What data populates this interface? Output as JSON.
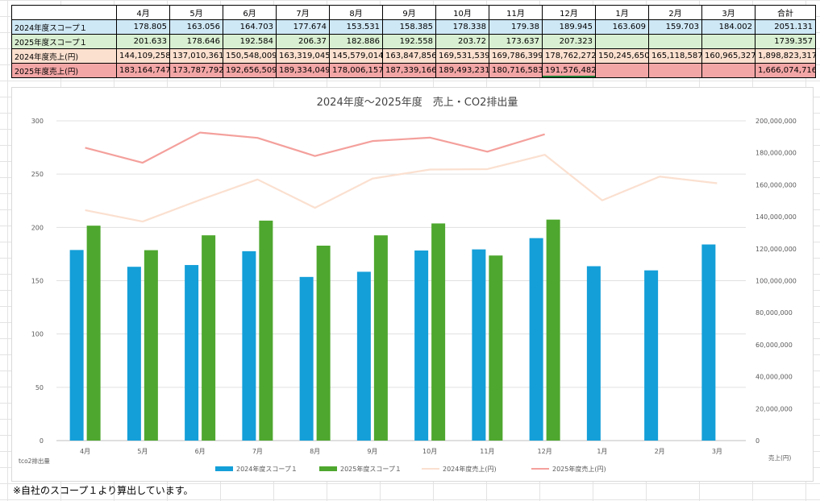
{
  "table": {
    "headers": [
      "",
      "4月",
      "5月",
      "6月",
      "7月",
      "8月",
      "9月",
      "10月",
      "11月",
      "12月",
      "1月",
      "2月",
      "3月",
      "合計"
    ],
    "rows": [
      {
        "label": "2024年度スコープ１",
        "cells": [
          "178.805",
          "163.056",
          "164.703",
          "177.674",
          "153.531",
          "158.385",
          "178.338",
          "179.38",
          "189.945",
          "163.609",
          "159.703",
          "184.002",
          "2051.131"
        ]
      },
      {
        "label": "2025年度スコープ１",
        "cells": [
          "201.633",
          "178.646",
          "192.584",
          "206.37",
          "182.886",
          "192.558",
          "203.72",
          "173.637",
          "207.323",
          "",
          "",
          "",
          "1739.357"
        ]
      },
      {
        "label": "2024年度売上(円)",
        "cells": [
          "144,109,258",
          "137,010,361",
          "150,548,009",
          "163,319,045",
          "145,579,014",
          "163,847,856",
          "169,531,539",
          "169,786,399",
          "178,762,272",
          "150,245,650",
          "165,118,587",
          "160,965,327",
          "1,898,823,317"
        ]
      },
      {
        "label": "2025年度売上(円)",
        "cells": [
          "183,164,747",
          "173,787,792",
          "192,656,509",
          "189,334,049",
          "178,006,157",
          "187,339,166",
          "189,493,231",
          "180,716,583",
          "191,576,482",
          "",
          "",
          "",
          "1,666,074,716"
        ]
      }
    ]
  },
  "chart_data": {
    "type": "bar",
    "title": "2024年度～2025年度　売上・CO2排出量",
    "categories": [
      "4月",
      "5月",
      "6月",
      "7月",
      "8月",
      "9月",
      "10月",
      "11月",
      "12月",
      "1月",
      "2月",
      "3月"
    ],
    "ylabel": "tco2排出量",
    "y2label": "売上(円)",
    "ylim": [
      0,
      300
    ],
    "yticks": [
      "0",
      "50",
      "100",
      "150",
      "200",
      "250",
      "300"
    ],
    "y2lim": [
      0,
      200000000
    ],
    "y2ticks": [
      "0",
      "20,000,000",
      "40,000,000",
      "60,000,000",
      "80,000,000",
      "100,000,000",
      "120,000,000",
      "140,000,000",
      "160,000,000",
      "180,000,000",
      "200,000,000"
    ],
    "legend_position": "bottom",
    "series": [
      {
        "name": "2024年度スコープ１",
        "kind": "bar",
        "axis": "left",
        "color": "#149fd8",
        "values": [
          178.805,
          163.056,
          164.703,
          177.674,
          153.531,
          158.385,
          178.338,
          179.38,
          189.945,
          163.609,
          159.703,
          184.002
        ]
      },
      {
        "name": "2025年度スコープ１",
        "kind": "bar",
        "axis": "left",
        "color": "#4ea72e",
        "values": [
          201.633,
          178.646,
          192.584,
          206.37,
          182.886,
          192.558,
          203.72,
          173.637,
          207.323,
          null,
          null,
          null
        ]
      },
      {
        "name": "2024年度売上(円)",
        "kind": "line",
        "axis": "right",
        "color": "#fbe0d0",
        "values": [
          144109258,
          137010361,
          150548009,
          163319045,
          145579014,
          163847856,
          169531539,
          169786399,
          178762272,
          150245650,
          165118587,
          160965327
        ]
      },
      {
        "name": "2025年度売上(円)",
        "kind": "line",
        "axis": "right",
        "color": "#f4a09c",
        "values": [
          183164747,
          173787792,
          192656509,
          189334049,
          178006157,
          187339166,
          189493231,
          180716583,
          191576482,
          null,
          null,
          null
        ]
      }
    ]
  },
  "note": "※自社のスコープ１より算出しています。"
}
